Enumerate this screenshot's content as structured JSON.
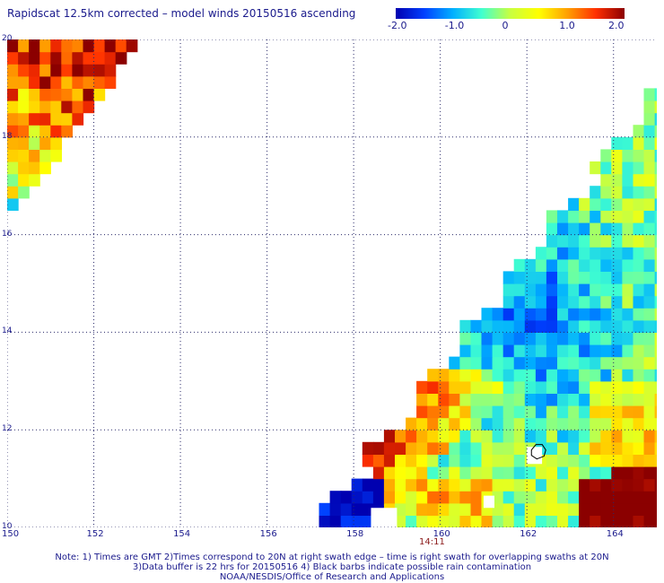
{
  "title": "Rapidscat 12.5km corrected – model winds 20150516 ascending",
  "colorbar": {
    "labels": [
      "-2.0",
      "-1.0",
      "0",
      "1.0",
      "2.0"
    ],
    "values": [
      -2.0,
      -1.0,
      0.0,
      1.0,
      2.0
    ],
    "range": [
      -2.0,
      2.0
    ],
    "colors": [
      "#0000b0",
      "#0040ff",
      "#00b0ff",
      "#40ffd0",
      "#c8ff40",
      "#ffff00",
      "#ffa000",
      "#ff3000",
      "#8b0000"
    ]
  },
  "map": {
    "lat_range": [
      10,
      20
    ],
    "lon_range": [
      150,
      165
    ],
    "lat_labels": [
      "20",
      "18",
      "16",
      "14",
      "12",
      "10"
    ],
    "lat_values": [
      20,
      18,
      16,
      14,
      12,
      10
    ],
    "lon_labels": [
      "150",
      "152",
      "154",
      "156",
      "158",
      "160",
      "162",
      "164"
    ],
    "lon_values": [
      150,
      152,
      154,
      156,
      158,
      160,
      162,
      164
    ],
    "grid": "dotted",
    "swath_time": "14:11",
    "swath_time_lon": 159.8
  },
  "notes": {
    "line1": "Note: 1) Times are GMT 2)Times correspond to 20N at right swath edge – time is right swath for overlapping swaths at 20N",
    "line2": "3)Data buffer is 22 hrs for 20150516 4) Black barbs indicate possible rain contamination",
    "line3": "NOAA/NESDIS/Office of Research and Applications"
  }
}
